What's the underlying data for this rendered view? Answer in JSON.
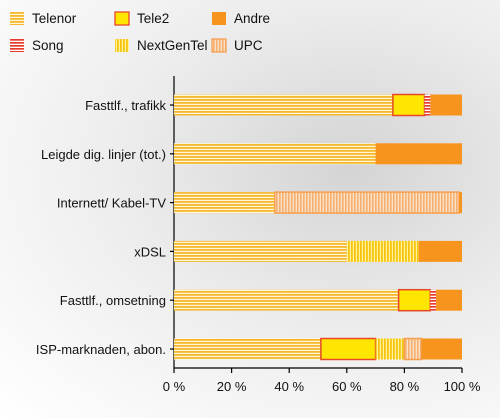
{
  "chart_data": {
    "type": "bar",
    "orientation": "horizontal",
    "stacked": true,
    "percent": true,
    "xlim": [
      0,
      100
    ],
    "x_ticks": [
      "0 %",
      "20 %",
      "40 %",
      "60 %",
      "80 %",
      "100 %"
    ],
    "categories": [
      "Fasttlf., trafikk",
      "Leigde dig. linjer (tot.)",
      "Internett/ Kabel-TV",
      "xDSL",
      "Fasttlf., omsetning",
      "ISP-marknaden, abon."
    ],
    "series": [
      {
        "name": "Telenor",
        "color": "#f5b82f",
        "pattern": "stripes-horizontal",
        "values": [
          76,
          70,
          35,
          60,
          78,
          51
        ]
      },
      {
        "name": "Tele2",
        "color": "#ffe600",
        "pattern": "solid-outlined",
        "values": [
          11,
          0,
          0,
          0,
          11,
          19
        ]
      },
      {
        "name": "Song",
        "color": "#e83a2a",
        "pattern": "stripes-horizontal-red",
        "values": [
          2,
          0,
          0,
          0,
          2,
          0
        ]
      },
      {
        "name": "NextGenTel",
        "color": "#f7c50f",
        "pattern": "stripes-vertical",
        "values": [
          0,
          0,
          0,
          25,
          0,
          10
        ]
      },
      {
        "name": "UPC",
        "color": "#f5b072",
        "pattern": "stripes-vertical-light",
        "values": [
          0,
          0,
          64,
          0,
          0,
          6
        ]
      },
      {
        "name": "Andre",
        "color": "#f7941e",
        "pattern": "solid",
        "values": [
          11,
          30,
          1,
          15,
          9,
          14
        ]
      }
    ],
    "legend": [
      {
        "name": "Telenor",
        "pattern": "stripes-horizontal"
      },
      {
        "name": "Tele2",
        "pattern": "solid-outlined"
      },
      {
        "name": "Andre",
        "pattern": "solid"
      },
      {
        "name": "Song",
        "pattern": "stripes-horizontal-red"
      },
      {
        "name": "NextGenTel",
        "pattern": "stripes-vertical"
      },
      {
        "name": "UPC",
        "pattern": "stripes-vertical-light"
      }
    ],
    "legend_position": "top",
    "grid": false
  }
}
